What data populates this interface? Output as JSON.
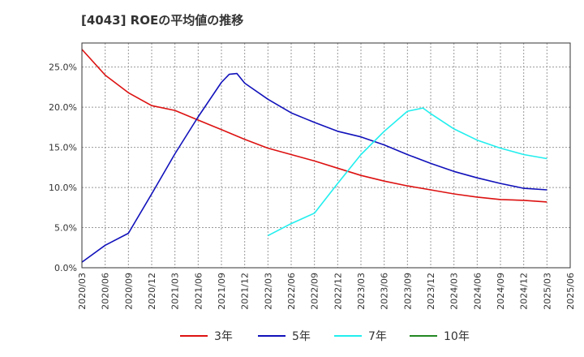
{
  "title": "[4043]  ROEの平均値の推移",
  "chart_data": {
    "type": "line",
    "title": "[4043]  ROEの平均値の推移",
    "xlabel": "",
    "ylabel": "",
    "ylim": [
      0,
      0.28
    ],
    "y_ticks": [
      0,
      0.05,
      0.1,
      0.15,
      0.2,
      0.25
    ],
    "y_tick_labels": [
      "0.0%",
      "5.0%",
      "10.0%",
      "15.0%",
      "20.0%",
      "25.0%"
    ],
    "x_range": [
      "2020/03",
      "2025/06"
    ],
    "x_tick_labels": [
      "2020/03",
      "2020/06",
      "2020/09",
      "2020/12",
      "2021/03",
      "2021/06",
      "2021/09",
      "2021/12",
      "2022/03",
      "2022/06",
      "2022/09",
      "2022/12",
      "2023/03",
      "2023/06",
      "2023/09",
      "2023/12",
      "2024/03",
      "2024/06",
      "2024/09",
      "2024/12",
      "2025/03",
      "2025/06"
    ],
    "grid": true,
    "legend_position": "bottom",
    "series": [
      {
        "name": "3年",
        "color": "#dd1111",
        "x": [
          "2020/03",
          "2020/06",
          "2020/09",
          "2020/12",
          "2021/03",
          "2021/06",
          "2021/09",
          "2021/12",
          "2022/03",
          "2022/06",
          "2022/09",
          "2022/12",
          "2023/03",
          "2023/06",
          "2023/09",
          "2023/12",
          "2024/03",
          "2024/06",
          "2024/09",
          "2024/12",
          "2025/03"
        ],
        "values": [
          0.272,
          0.24,
          0.218,
          0.202,
          0.196,
          0.184,
          0.172,
          0.16,
          0.149,
          0.141,
          0.133,
          0.124,
          0.115,
          0.108,
          0.102,
          0.097,
          0.092,
          0.088,
          0.085,
          0.084,
          0.082
        ]
      },
      {
        "name": "5年",
        "color": "#1111bb",
        "x": [
          "2020/03",
          "2020/06",
          "2020/09",
          "2020/12",
          "2021/03",
          "2021/06",
          "2021/09",
          "2021/10",
          "2021/11",
          "2021/12",
          "2022/03",
          "2022/06",
          "2022/09",
          "2022/12",
          "2023/03",
          "2023/06",
          "2023/09",
          "2023/12",
          "2024/03",
          "2024/06",
          "2024/09",
          "2024/12",
          "2025/03"
        ],
        "values": [
          0.007,
          0.028,
          0.043,
          0.092,
          0.142,
          0.188,
          0.231,
          0.241,
          0.242,
          0.23,
          0.21,
          0.193,
          0.181,
          0.17,
          0.163,
          0.153,
          0.141,
          0.13,
          0.12,
          0.112,
          0.105,
          0.099,
          0.097
        ]
      },
      {
        "name": "7年",
        "color": "#22eeee",
        "x": [
          "2022/03",
          "2022/06",
          "2022/09",
          "2022/12",
          "2023/03",
          "2023/06",
          "2023/09",
          "2023/11",
          "2023/12",
          "2024/03",
          "2024/06",
          "2024/09",
          "2024/12",
          "2025/03"
        ],
        "values": [
          0.04,
          0.055,
          0.068,
          0.105,
          0.141,
          0.17,
          0.195,
          0.199,
          0.192,
          0.173,
          0.159,
          0.149,
          0.141,
          0.136
        ]
      },
      {
        "name": "10年",
        "color": "#228822",
        "x": [],
        "values": []
      }
    ]
  }
}
